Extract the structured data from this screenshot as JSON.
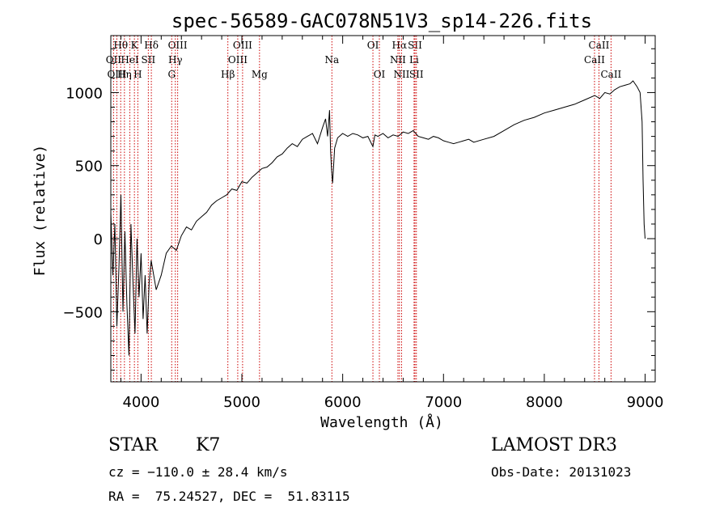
{
  "chart_data": {
    "type": "line",
    "title": "spec-56589-GAC078N51V3_sp14-226.fits",
    "xlabel": "Wavelength (Å)",
    "ylabel": "Flux (relative)",
    "xlim": [
      3700,
      9100
    ],
    "ylim": [
      -980,
      1390
    ],
    "xticks": [
      4000,
      5000,
      6000,
      7000,
      8000,
      9000
    ],
    "xtick_labels": [
      "4000",
      "5000",
      "6000",
      "7000",
      "8000",
      "9000"
    ],
    "yticks": [
      -500,
      0,
      500,
      1000
    ],
    "ytick_labels": [
      "−500",
      "0",
      "500",
      "1000"
    ],
    "series": [
      {
        "name": "flux",
        "x": [
          3700,
          3720,
          3740,
          3760,
          3780,
          3800,
          3820,
          3840,
          3860,
          3880,
          3900,
          3920,
          3940,
          3960,
          3980,
          4000,
          4020,
          4040,
          4060,
          4080,
          4100,
          4150,
          4200,
          4250,
          4300,
          4350,
          4400,
          4450,
          4500,
          4550,
          4600,
          4650,
          4700,
          4750,
          4800,
          4850,
          4900,
          4950,
          5000,
          5050,
          5100,
          5150,
          5200,
          5250,
          5300,
          5350,
          5400,
          5450,
          5500,
          5550,
          5600,
          5650,
          5700,
          5750,
          5800,
          5830,
          5850,
          5870,
          5880,
          5890,
          5900,
          5920,
          5950,
          6000,
          6050,
          6100,
          6150,
          6200,
          6250,
          6300,
          6320,
          6350,
          6400,
          6450,
          6500,
          6550,
          6600,
          6650,
          6700,
          6750,
          6800,
          6850,
          6900,
          6950,
          7000,
          7050,
          7100,
          7150,
          7200,
          7250,
          7300,
          7400,
          7500,
          7600,
          7700,
          7800,
          7900,
          8000,
          8100,
          8200,
          8300,
          8400,
          8500,
          8550,
          8600,
          8650,
          8700,
          8750,
          8800,
          8850,
          8880,
          8900,
          8920,
          8950,
          8970,
          8980,
          8990,
          9000
        ],
        "y": [
          180,
          -250,
          100,
          -600,
          -200,
          300,
          -500,
          50,
          -450,
          -800,
          100,
          -300,
          -650,
          0,
          -400,
          -100,
          -550,
          -250,
          -650,
          -300,
          -150,
          -350,
          -250,
          -100,
          -50,
          -80,
          20,
          80,
          60,
          120,
          150,
          180,
          230,
          260,
          280,
          300,
          340,
          330,
          390,
          380,
          420,
          450,
          480,
          490,
          520,
          560,
          580,
          620,
          650,
          630,
          680,
          700,
          720,
          650,
          760,
          820,
          700,
          880,
          600,
          470,
          380,
          620,
          690,
          720,
          700,
          720,
          710,
          690,
          700,
          630,
          710,
          700,
          720,
          690,
          710,
          700,
          730,
          720,
          740,
          700,
          690,
          680,
          700,
          690,
          670,
          660,
          650,
          660,
          670,
          680,
          660,
          680,
          700,
          740,
          780,
          810,
          830,
          860,
          880,
          900,
          920,
          950,
          980,
          960,
          1000,
          990,
          1020,
          1040,
          1050,
          1060,
          1080,
          1060,
          1040,
          1000,
          800,
          400,
          100,
          0
        ]
      }
    ],
    "spectral_lines": [
      {
        "label": "Hθ",
        "x": 3798,
        "row": 0
      },
      {
        "label": "K",
        "x": 3934,
        "row": 0
      },
      {
        "label": "Hδ",
        "x": 4102,
        "row": 0
      },
      {
        "label": "OIII",
        "x": 4363,
        "row": 0
      },
      {
        "label": "OIII",
        "x": 5007,
        "row": 0
      },
      {
        "label": "OI",
        "x": 6300,
        "row": 0
      },
      {
        "label": "Hα",
        "x": 6563,
        "row": 0
      },
      {
        "label": "SII",
        "x": 6717,
        "row": 0
      },
      {
        "label": "CaII",
        "x": 8542,
        "row": 0
      },
      {
        "label": "OII",
        "x": 3727,
        "row": 1
      },
      {
        "label": "HeI",
        "x": 3889,
        "row": 1
      },
      {
        "label": "SII",
        "x": 4072,
        "row": 1
      },
      {
        "label": "Hγ",
        "x": 4340,
        "row": 1
      },
      {
        "label": "OIII",
        "x": 4959,
        "row": 1
      },
      {
        "label": "Na",
        "x": 5893,
        "row": 1
      },
      {
        "label": "NII",
        "x": 6548,
        "row": 1
      },
      {
        "label": "Li",
        "x": 6708,
        "row": 1
      },
      {
        "label": "CaII",
        "x": 8498,
        "row": 1
      },
      {
        "label": "OIII",
        "x": 3760,
        "row": 2
      },
      {
        "label": "Hη",
        "x": 3835,
        "row": 2
      },
      {
        "label": "H",
        "x": 3968,
        "row": 2
      },
      {
        "label": "G",
        "x": 4304,
        "row": 2
      },
      {
        "label": "Hβ",
        "x": 4861,
        "row": 2
      },
      {
        "label": "Mg",
        "x": 5175,
        "row": 2
      },
      {
        "label": "OI",
        "x": 6364,
        "row": 2
      },
      {
        "label": "NII",
        "x": 6584,
        "row": 2
      },
      {
        "label": "SII",
        "x": 6731,
        "row": 2
      },
      {
        "label": "CaII",
        "x": 8662,
        "row": 2
      }
    ]
  },
  "info": {
    "class": "STAR",
    "subclass": "K7",
    "survey": "LAMOST DR3",
    "cz": "cz = −110.0 ± 28.4 km/s",
    "obs_date": "Obs-Date: 20131023",
    "radec": "RA =  75.24527, DEC =  51.83115"
  }
}
